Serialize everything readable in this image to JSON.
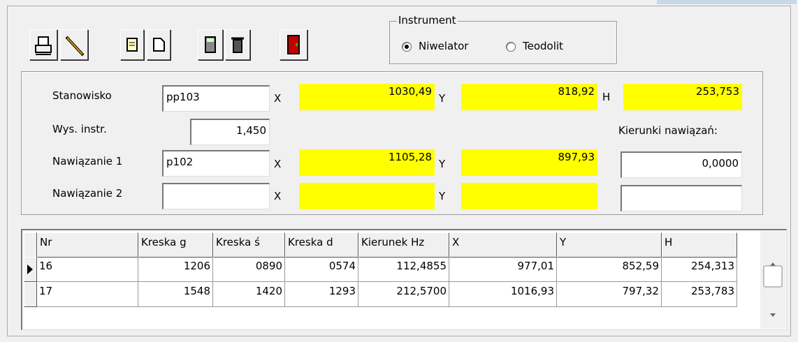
{
  "instrument": {
    "title": "Instrument",
    "options": [
      {
        "label": "Niwelator",
        "selected": true
      },
      {
        "label": "Teodolit",
        "selected": false
      }
    ]
  },
  "form": {
    "stanowisko": {
      "label": "Stanowisko",
      "name": "pp103",
      "x_label": "X",
      "x": "1030,49",
      "y_label": "Y",
      "y": "818,92",
      "h_label": "H",
      "h": "253,753"
    },
    "wys_instr": {
      "label": "Wys. instr.",
      "value": "1,450"
    },
    "kierunki_label": "Kierunki nawiązań:",
    "nawiazanie1": {
      "label": "Nawiązanie 1",
      "name": "p102",
      "x_label": "X",
      "x": "1105,28",
      "y_label": "Y",
      "y": "897,93",
      "kierunek": "0,0000"
    },
    "nawiazanie2": {
      "label": "Nawiązanie 2",
      "x_label": "X",
      "y_label": "Y"
    }
  },
  "table": {
    "columns": [
      "Nr",
      "Kreska g",
      "Kreska ś",
      "Kreska d",
      "Kierunek Hz",
      "X",
      "Y",
      "H"
    ],
    "rows": [
      [
        "16",
        "1206",
        "0890",
        "0574",
        "112,4855",
        "977,01",
        "852,59",
        "254,313"
      ],
      [
        "17",
        "1548",
        "1420",
        "1293",
        "212,5700",
        "1016,93",
        "797,32",
        "253,783"
      ]
    ]
  }
}
